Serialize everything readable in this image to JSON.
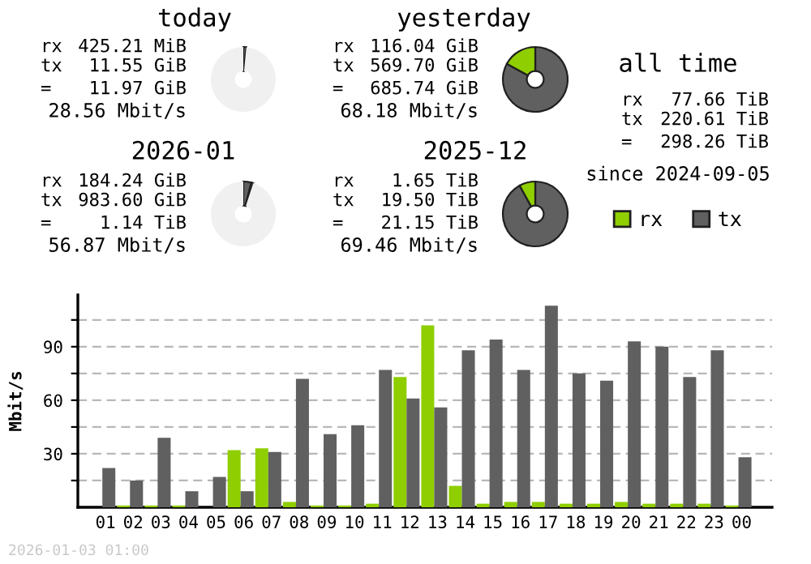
{
  "chart_data": [
    {
      "type": "donut",
      "title": "today",
      "categories": [
        null,
        null
      ],
      "values": [
        1.5,
        98.5
      ],
      "colors": [
        "#606060",
        "#f0f0f0"
      ],
      "annotations": [
        "rx 425.21 MiB",
        "tx 11.55 GiB",
        "= 11.97 GiB",
        "28.56 Mbit/s"
      ]
    },
    {
      "type": "donut",
      "title": "yesterday",
      "categories": [
        null,
        null
      ],
      "values": [
        83,
        17
      ],
      "colors": [
        "#606060",
        "#8fce00"
      ],
      "annotations": [
        "rx 116.04 GiB",
        "tx 569.70 GiB",
        "= 685.74 GiB",
        "68.18 Mbit/s"
      ]
    },
    {
      "type": "other",
      "title": "all time",
      "annotations": [
        "rx 77.66 TiB",
        "tx 220.61 TiB",
        "= 298.26 TiB",
        "since 2024-09-05"
      ]
    },
    {
      "type": "donut",
      "title": "2026-01",
      "categories": [
        null,
        null,
        null
      ],
      "values": [
        4,
        1,
        95
      ],
      "colors": [
        "#606060",
        "#8fce00",
        "#f0f0f0"
      ],
      "annotations": [
        "rx 184.24 GiB",
        "tx 983.60 GiB",
        "= 1.14 TiB",
        "56.87 Mbit/s"
      ]
    },
    {
      "type": "donut",
      "title": "2025-12",
      "categories": [
        null,
        null
      ],
      "values": [
        92,
        8
      ],
      "colors": [
        "#606060",
        "#8fce00"
      ],
      "annotations": [
        "rx 1.65 TiB",
        "tx 19.50 TiB",
        "= 21.15 TiB",
        "69.46 Mbit/s"
      ]
    },
    {
      "type": "bar",
      "ylabel": "Mbit/s",
      "categories": [
        "01",
        "02",
        "03",
        "04",
        "05",
        "06",
        "07",
        "08",
        "09",
        "10",
        "11",
        "12",
        "13",
        "14",
        "15",
        "16",
        "17",
        "18",
        "19",
        "20",
        "21",
        "22",
        "23",
        "00"
      ],
      "series": [
        {
          "name": "rx",
          "color": "#8fce00",
          "values": [
            0,
            1,
            1,
            1,
            0,
            32,
            33,
            3,
            1,
            1,
            2,
            73,
            102,
            12,
            2,
            3,
            3,
            2,
            2,
            3,
            2,
            2,
            2,
            1
          ]
        },
        {
          "name": "tx",
          "color": "#606060",
          "values": [
            22,
            15,
            39,
            9,
            17,
            9,
            31,
            72,
            41,
            46,
            77,
            61,
            56,
            88,
            94,
            77,
            113,
            75,
            71,
            93,
            90,
            73,
            88,
            28
          ]
        }
      ],
      "ylim": [
        0,
        119
      ],
      "yticks": [
        {
          "value": 15,
          "label": null
        },
        30,
        {
          "value": 45,
          "label": null
        },
        60,
        {
          "value": 75,
          "label": null
        },
        90,
        {
          "value": 105,
          "label": null
        }
      ],
      "grid": "y",
      "legend": "top right",
      "annotations": [
        "2026-01-03 01:00"
      ]
    }
  ]
}
